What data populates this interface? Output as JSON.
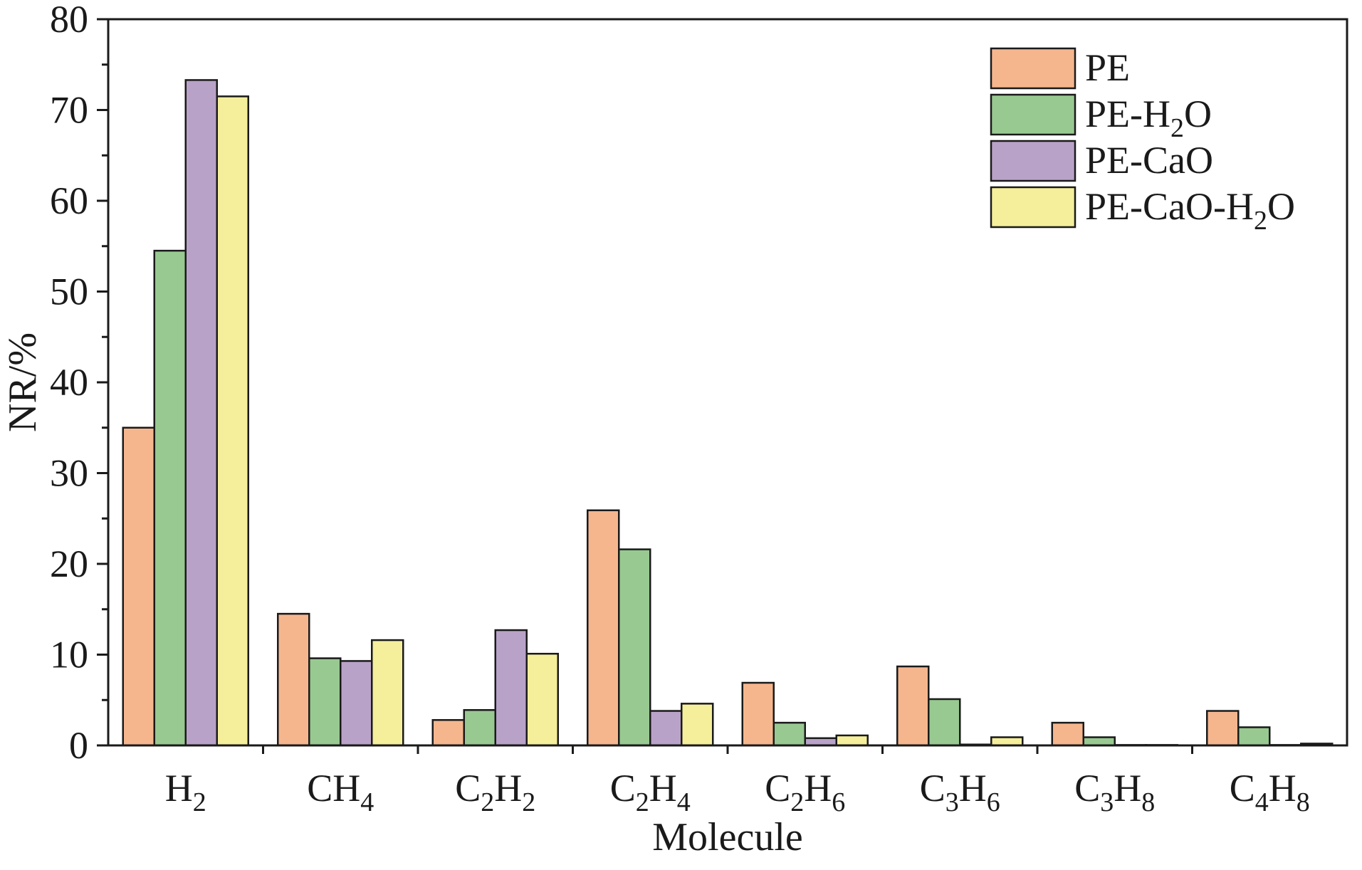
{
  "chart_data": {
    "type": "bar",
    "xlabel": "Molecule",
    "ylabel": "NR/%",
    "ylim": [
      0,
      80
    ],
    "yticks": [
      0,
      10,
      20,
      30,
      40,
      50,
      60,
      70,
      80
    ],
    "grid": false,
    "legend_position": "top-right",
    "categories": [
      {
        "base": "H",
        "sub": "2",
        "label": "H2"
      },
      {
        "base": "CH",
        "sub": "4",
        "label": "CH4"
      },
      {
        "base": "C",
        "sub": "2",
        "base2": "H",
        "sub2": "2",
        "label": "C2H2"
      },
      {
        "base": "C",
        "sub": "2",
        "base2": "H",
        "sub2": "4",
        "label": "C2H4"
      },
      {
        "base": "C",
        "sub": "2",
        "base2": "H",
        "sub2": "6",
        "label": "C2H6"
      },
      {
        "base": "C",
        "sub": "3",
        "base2": "H",
        "sub2": "6",
        "label": "C3H6"
      },
      {
        "base": "C",
        "sub": "3",
        "base2": "H",
        "sub2": "8",
        "label": "C3H8"
      },
      {
        "base": "C",
        "sub": "4",
        "base2": "H",
        "sub2": "8",
        "label": "C4H8"
      }
    ],
    "series": [
      {
        "name": "PE",
        "name_parts": [
          {
            "t": "PE"
          }
        ],
        "color": "#f5b68e",
        "values": [
          35.0,
          14.5,
          2.8,
          25.9,
          6.9,
          8.7,
          2.5,
          3.8
        ]
      },
      {
        "name": "PE-H2O",
        "name_parts": [
          {
            "t": "PE-H"
          },
          {
            "t": "2",
            "sub": true
          },
          {
            "t": "O"
          }
        ],
        "color": "#98c991",
        "values": [
          54.5,
          9.6,
          3.9,
          21.6,
          2.5,
          5.1,
          0.9,
          2.0
        ]
      },
      {
        "name": "PE-CaO",
        "name_parts": [
          {
            "t": "PE-CaO"
          }
        ],
        "color": "#b9a2c8",
        "values": [
          73.3,
          9.3,
          12.7,
          3.8,
          0.8,
          0.1,
          0.05,
          0.05
        ]
      },
      {
        "name": "PE-CaO-H2O",
        "name_parts": [
          {
            "t": "PE-CaO-H"
          },
          {
            "t": "2",
            "sub": true
          },
          {
            "t": "O"
          }
        ],
        "color": "#f5ef9b",
        "values": [
          71.5,
          11.6,
          10.1,
          4.6,
          1.1,
          0.9,
          0.05,
          0.2
        ]
      }
    ]
  }
}
